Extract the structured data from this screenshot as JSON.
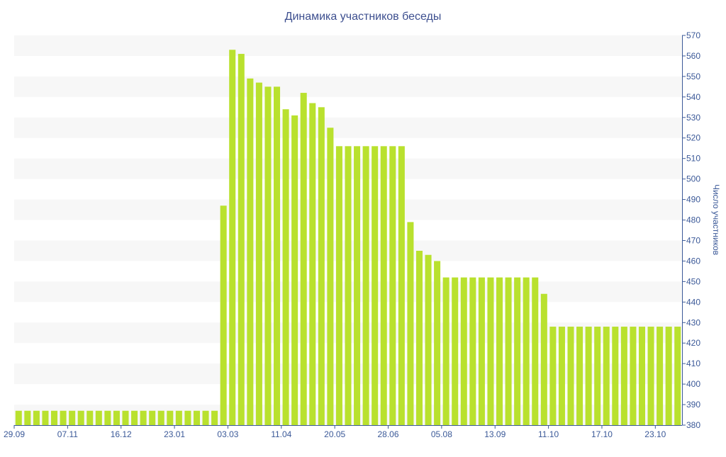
{
  "chart_data": {
    "type": "bar",
    "title": "Динамика участников беседы",
    "xlabel": "",
    "ylabel": "Число участников",
    "ylim": [
      380,
      570
    ],
    "y_ticks": [
      380,
      390,
      400,
      410,
      420,
      430,
      440,
      450,
      460,
      470,
      480,
      490,
      500,
      510,
      520,
      530,
      540,
      550,
      560,
      570
    ],
    "x_tick_labels": [
      "29.09",
      "07.11",
      "16.12",
      "23.01",
      "03.03",
      "11.04",
      "20.05",
      "28.06",
      "05.08",
      "13.09",
      "11.10",
      "17.10",
      "23.10"
    ],
    "x_tick_positions": [
      0,
      6,
      12,
      18,
      24,
      30,
      36,
      42,
      48,
      54,
      60,
      66,
      72
    ],
    "y_axis_position": "right",
    "grid": "alternating horizontal bands",
    "bar_color": "#b9e12e",
    "band_color": "#f7f7f7",
    "text_color": "#3b5998",
    "values": [
      387,
      387,
      387,
      387,
      387,
      387,
      387,
      387,
      387,
      387,
      387,
      387,
      387,
      387,
      387,
      387,
      387,
      387,
      387,
      387,
      387,
      387,
      387,
      487,
      563,
      561,
      549,
      547,
      545,
      545,
      534,
      531,
      542,
      537,
      535,
      525,
      516,
      516,
      516,
      516,
      516,
      516,
      516,
      516,
      479,
      465,
      463,
      460,
      452,
      452,
      452,
      452,
      452,
      452,
      452,
      452,
      452,
      452,
      452,
      444,
      428,
      428,
      428,
      428,
      428,
      428,
      428,
      428,
      428,
      428,
      428,
      428,
      428,
      428,
      428
    ]
  }
}
